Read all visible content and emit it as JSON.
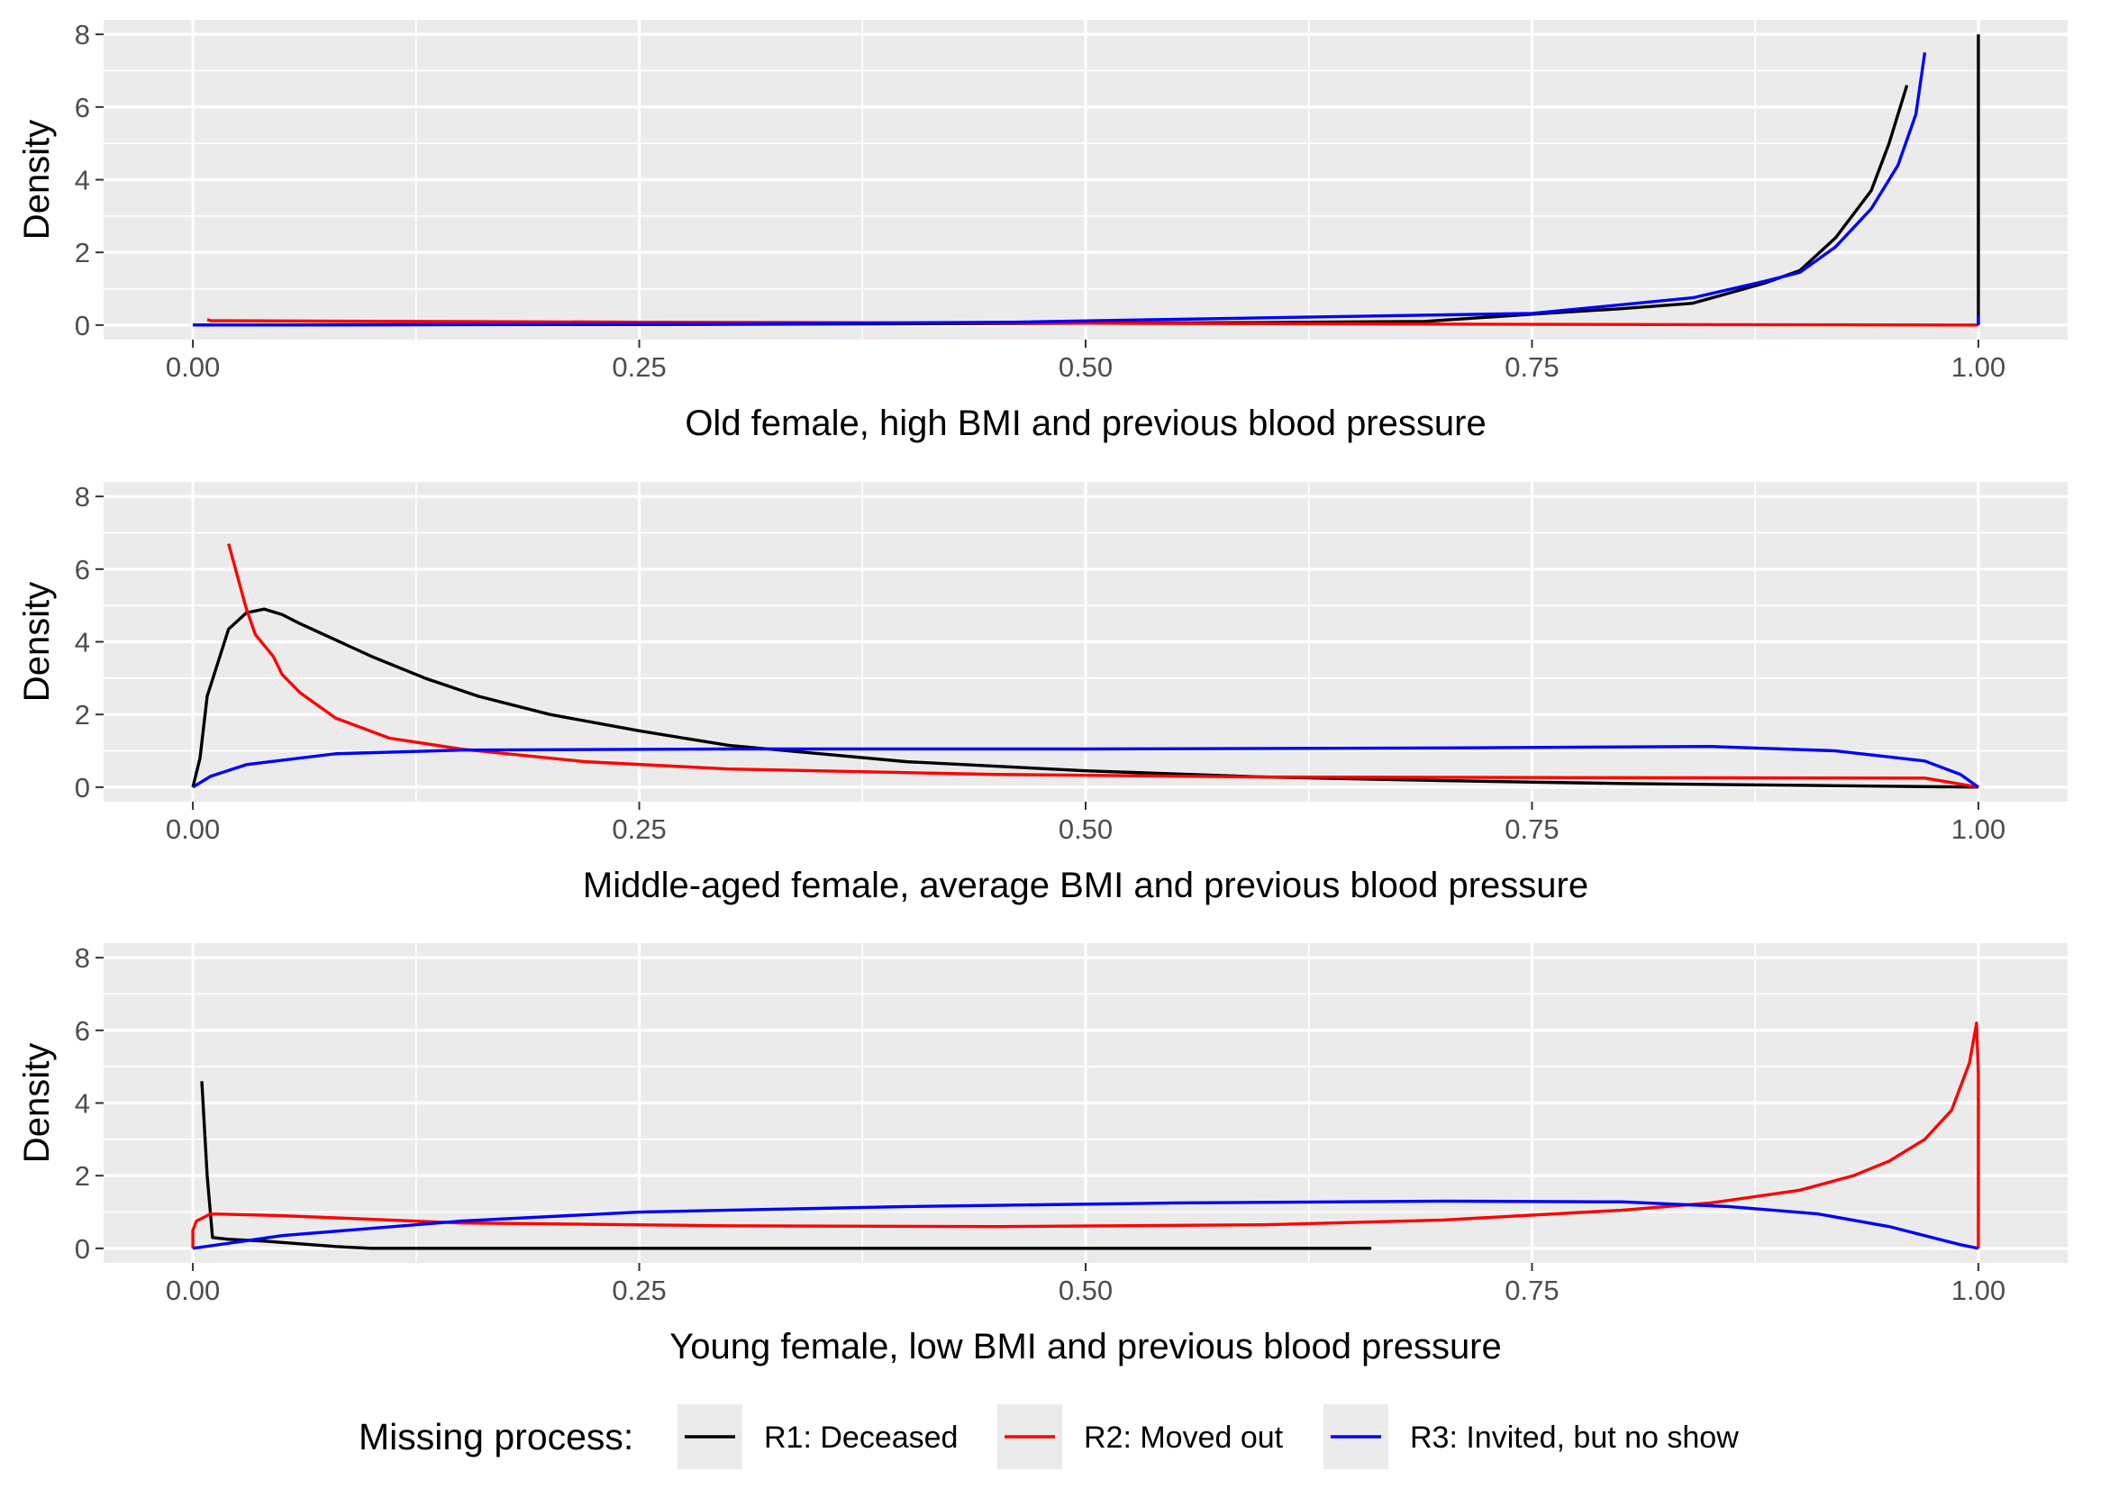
{
  "chart_data": {
    "type": "line",
    "colors": {
      "R1": "#000000",
      "R2": "#ff0000",
      "R3": "#0000ff",
      "panel_background": "#ebebeb",
      "grid": "#ffffff"
    },
    "legend": {
      "position": "bottom",
      "title": "Missing process:",
      "entries": [
        {
          "key": "R1",
          "label": "R1: Deceased"
        },
        {
          "key": "R2",
          "label": "R2: Moved out"
        },
        {
          "key": "R3",
          "label": "R3: Invited, but no show"
        }
      ]
    },
    "panels": [
      {
        "xlabel": "Old female, high BMI and previous blood pressure",
        "ylabel": "Density",
        "xlim": [
          0,
          1
        ],
        "ylim": [
          0,
          8
        ],
        "grid": true,
        "x_ticks": [
          "0.00",
          "0.25",
          "0.50",
          "0.75",
          "1.00"
        ],
        "y_ticks": [
          "0",
          "2",
          "4",
          "6",
          "8"
        ],
        "series": [
          {
            "key": "R1",
            "points": [
              [
                0.0,
                0.0
              ],
              [
                0.3,
                0.02
              ],
              [
                0.5,
                0.05
              ],
              [
                0.6,
                0.07
              ],
              [
                0.69,
                0.1
              ],
              [
                0.75,
                0.3
              ],
              [
                0.8,
                0.45
              ],
              [
                0.84,
                0.6
              ],
              [
                0.88,
                1.15
              ],
              [
                0.9,
                1.5
              ],
              [
                0.92,
                2.4
              ],
              [
                0.94,
                3.7
              ],
              [
                0.95,
                5.0
              ],
              [
                0.96,
                6.6
              ]
            ]
          },
          {
            "key": "R1",
            "points": [
              [
                1.0,
                0.0
              ],
              [
                1.0,
                8.0
              ]
            ]
          },
          {
            "key": "R2",
            "points": [
              [
                0.008,
                0.15
              ],
              [
                0.01,
                0.12
              ],
              [
                0.25,
                0.08
              ],
              [
                0.5,
                0.05
              ],
              [
                0.75,
                0.02
              ],
              [
                1.0,
                0.0
              ]
            ]
          },
          {
            "key": "R3",
            "points": [
              [
                0.0,
                0.0
              ],
              [
                0.3,
                0.03
              ],
              [
                0.46,
                0.08
              ],
              [
                0.6,
                0.2
              ],
              [
                0.75,
                0.32
              ],
              [
                0.84,
                0.75
              ],
              [
                0.88,
                1.2
              ],
              [
                0.9,
                1.45
              ],
              [
                0.92,
                2.15
              ],
              [
                0.94,
                3.2
              ],
              [
                0.955,
                4.4
              ],
              [
                0.965,
                5.8
              ],
              [
                0.97,
                7.5
              ]
            ]
          },
          {
            "key": "R3",
            "points": [
              [
                1.0,
                0.0
              ],
              [
                1.0,
                0.25
              ]
            ]
          }
        ]
      },
      {
        "xlabel": "Middle-aged female, average BMI and previous blood pressure",
        "ylabel": "Density",
        "xlim": [
          0,
          1
        ],
        "ylim": [
          0,
          8
        ],
        "grid": true,
        "x_ticks": [
          "0.00",
          "0.25",
          "0.50",
          "0.75",
          "1.00"
        ],
        "y_ticks": [
          "0",
          "2",
          "4",
          "6",
          "8"
        ],
        "series": [
          {
            "key": "R1",
            "points": [
              [
                0.0,
                0.0
              ],
              [
                0.004,
                0.8
              ],
              [
                0.008,
                2.5
              ],
              [
                0.02,
                4.35
              ],
              [
                0.03,
                4.8
              ],
              [
                0.04,
                4.9
              ],
              [
                0.05,
                4.75
              ],
              [
                0.06,
                4.5
              ],
              [
                0.08,
                4.05
              ],
              [
                0.1,
                3.6
              ],
              [
                0.13,
                3.0
              ],
              [
                0.16,
                2.5
              ],
              [
                0.2,
                2.0
              ],
              [
                0.25,
                1.55
              ],
              [
                0.3,
                1.15
              ],
              [
                0.4,
                0.7
              ],
              [
                0.5,
                0.45
              ],
              [
                0.6,
                0.28
              ],
              [
                0.7,
                0.18
              ],
              [
                0.8,
                0.1
              ],
              [
                0.9,
                0.05
              ],
              [
                1.0,
                0.0
              ]
            ]
          },
          {
            "key": "R2",
            "points": [
              [
                0.02,
                6.7
              ],
              [
                0.025,
                5.8
              ],
              [
                0.03,
                4.9
              ],
              [
                0.035,
                4.2
              ],
              [
                0.045,
                3.6
              ],
              [
                0.05,
                3.1
              ],
              [
                0.06,
                2.6
              ],
              [
                0.08,
                1.9
              ],
              [
                0.11,
                1.35
              ],
              [
                0.15,
                1.05
              ],
              [
                0.22,
                0.7
              ],
              [
                0.3,
                0.5
              ],
              [
                0.45,
                0.35
              ],
              [
                0.6,
                0.28
              ],
              [
                0.8,
                0.26
              ],
              [
                0.97,
                0.25
              ],
              [
                1.0,
                0.0
              ]
            ]
          },
          {
            "key": "R3",
            "points": [
              [
                0.0,
                0.0
              ],
              [
                0.01,
                0.3
              ],
              [
                0.03,
                0.62
              ],
              [
                0.08,
                0.92
              ],
              [
                0.15,
                1.02
              ],
              [
                0.3,
                1.05
              ],
              [
                0.5,
                1.05
              ],
              [
                0.7,
                1.08
              ],
              [
                0.85,
                1.12
              ],
              [
                0.92,
                1.0
              ],
              [
                0.97,
                0.72
              ],
              [
                0.99,
                0.35
              ],
              [
                1.0,
                0.0
              ]
            ]
          }
        ]
      },
      {
        "xlabel": "Young female, low BMI and previous blood pressure",
        "ylabel": "Density",
        "xlim": [
          0,
          1
        ],
        "ylim": [
          0,
          8
        ],
        "grid": true,
        "x_ticks": [
          "0.00",
          "0.25",
          "0.50",
          "0.75",
          "1.00"
        ],
        "y_ticks": [
          "0",
          "2",
          "4",
          "6",
          "8"
        ],
        "series": [
          {
            "key": "R1",
            "points": [
              [
                0.005,
                4.6
              ],
              [
                0.008,
                2.0
              ],
              [
                0.011,
                0.3
              ],
              [
                0.02,
                0.25
              ],
              [
                0.04,
                0.2
              ],
              [
                0.08,
                0.05
              ],
              [
                0.1,
                0.0
              ],
              [
                0.66,
                0.0
              ]
            ]
          },
          {
            "key": "R2",
            "points": [
              [
                0.0,
                0.0
              ],
              [
                0.0,
                0.5
              ],
              [
                0.002,
                0.75
              ],
              [
                0.01,
                0.95
              ],
              [
                0.05,
                0.9
              ],
              [
                0.15,
                0.7
              ],
              [
                0.3,
                0.62
              ],
              [
                0.45,
                0.6
              ],
              [
                0.6,
                0.65
              ],
              [
                0.7,
                0.78
              ],
              [
                0.8,
                1.05
              ],
              [
                0.85,
                1.25
              ],
              [
                0.9,
                1.6
              ],
              [
                0.93,
                2.0
              ],
              [
                0.95,
                2.4
              ],
              [
                0.97,
                3.0
              ],
              [
                0.985,
                3.8
              ],
              [
                0.995,
                5.1
              ],
              [
                0.999,
                6.2
              ],
              [
                1.0,
                4.8
              ],
              [
                1.0,
                0.0
              ]
            ]
          },
          {
            "key": "R3",
            "points": [
              [
                0.0,
                0.0
              ],
              [
                0.05,
                0.35
              ],
              [
                0.15,
                0.75
              ],
              [
                0.25,
                1.0
              ],
              [
                0.4,
                1.15
              ],
              [
                0.55,
                1.25
              ],
              [
                0.7,
                1.3
              ],
              [
                0.8,
                1.28
              ],
              [
                0.86,
                1.15
              ],
              [
                0.91,
                0.95
              ],
              [
                0.95,
                0.6
              ],
              [
                0.97,
                0.35
              ],
              [
                0.99,
                0.1
              ],
              [
                1.0,
                0.0
              ]
            ]
          }
        ]
      }
    ]
  }
}
